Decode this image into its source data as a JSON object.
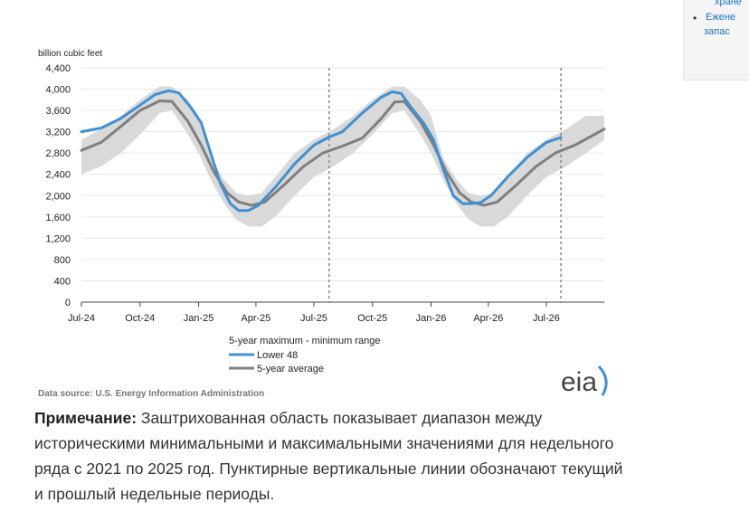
{
  "side_panel": {
    "line1": "хране",
    "line2": "Ежене",
    "line3": "запас"
  },
  "chart_data": {
    "type": "line",
    "ylabel": "billion cubic feet",
    "ylim": [
      0,
      4400
    ],
    "yticks": [
      0,
      400,
      800,
      1200,
      1600,
      2000,
      2400,
      2800,
      3200,
      3600,
      4000,
      4400
    ],
    "yticklabels": [
      "0",
      "400",
      "800",
      "1,200",
      "1,600",
      "2,000",
      "2,400",
      "2,800",
      "3,200",
      "3,600",
      "4,000",
      "4,400"
    ],
    "xlim": [
      "2024-07-01",
      "2026-09-30"
    ],
    "xticks": [
      "2024-07-01",
      "2024-10-01",
      "2025-01-01",
      "2025-04-01",
      "2025-07-01",
      "2025-10-01",
      "2026-01-01",
      "2026-04-01",
      "2026-07-01"
    ],
    "xticklabels": [
      "Jul-24",
      "Oct-24",
      "Jan-25",
      "Apr-25",
      "Jul-25",
      "Oct-25",
      "Jan-26",
      "Apr-26",
      "Jul-26"
    ],
    "grid": true,
    "current_week_lines": [
      "2025-07-25",
      "2026-07-24"
    ],
    "range": {
      "name": "5-year maximum - minimum range",
      "color": "#d9d9d9",
      "x": [
        "2024-07-01",
        "2024-08-01",
        "2024-09-01",
        "2024-10-01",
        "2024-11-01",
        "2024-11-20",
        "2024-12-15",
        "2025-01-01",
        "2025-01-20",
        "2025-02-10",
        "2025-03-01",
        "2025-03-20",
        "2025-04-10",
        "2025-05-01",
        "2025-06-01",
        "2025-07-01",
        "2025-08-01",
        "2025-09-01",
        "2025-10-01",
        "2025-11-01",
        "2025-11-20",
        "2025-12-15",
        "2026-01-01",
        "2026-01-20",
        "2026-02-10",
        "2026-03-01",
        "2026-03-20",
        "2026-04-10",
        "2026-05-01",
        "2026-06-01",
        "2026-07-01",
        "2026-08-01",
        "2026-09-01",
        "2026-09-30"
      ],
      "lower": [
        2400,
        2550,
        2800,
        3150,
        3550,
        3600,
        3150,
        2800,
        2300,
        1850,
        1550,
        1420,
        1420,
        1600,
        2000,
        2350,
        2550,
        2800,
        3150,
        3550,
        3600,
        3150,
        2800,
        2300,
        1850,
        1550,
        1420,
        1420,
        1600,
        2000,
        2350,
        2550,
        2800,
        3050
      ],
      "upper": [
        3050,
        3250,
        3500,
        3800,
        4050,
        4050,
        3800,
        3500,
        2700,
        2300,
        2050,
        2000,
        2050,
        2350,
        2800,
        3050,
        3250,
        3500,
        3800,
        4050,
        4050,
        3800,
        3500,
        2700,
        2300,
        2050,
        2000,
        2050,
        2350,
        2800,
        3050,
        3250,
        3500,
        3500
      ]
    },
    "series": [
      {
        "name": "Lower 48",
        "color": "#3f91d3",
        "x": [
          "2024-07-01",
          "2024-08-01",
          "2024-09-01",
          "2024-10-01",
          "2024-10-25",
          "2024-11-15",
          "2024-12-01",
          "2024-12-20",
          "2025-01-05",
          "2025-01-20",
          "2025-02-05",
          "2025-02-20",
          "2025-03-05",
          "2025-03-20",
          "2025-04-05",
          "2025-05-01",
          "2025-06-01",
          "2025-07-01",
          "2025-07-25",
          "2025-08-15",
          "2025-09-15",
          "2025-10-15",
          "2025-11-01",
          "2025-11-15",
          "2025-12-01",
          "2025-12-20",
          "2026-01-05",
          "2026-01-20",
          "2026-02-05",
          "2026-02-20",
          "2026-03-05",
          "2026-03-20",
          "2026-04-05",
          "2026-05-01",
          "2026-06-01",
          "2026-07-01",
          "2026-07-24"
        ],
        "values": [
          3200,
          3270,
          3450,
          3700,
          3900,
          3970,
          3930,
          3650,
          3370,
          2800,
          2200,
          1850,
          1720,
          1720,
          1820,
          2150,
          2600,
          2950,
          3100,
          3200,
          3550,
          3850,
          3950,
          3920,
          3650,
          3370,
          3050,
          2500,
          2000,
          1850,
          1850,
          1870,
          2000,
          2350,
          2720,
          3000,
          3090
        ]
      },
      {
        "name": "5-year average",
        "color": "#7f7f7f",
        "x": [
          "2024-07-01",
          "2024-08-01",
          "2024-09-01",
          "2024-10-01",
          "2024-11-01",
          "2024-11-20",
          "2024-12-15",
          "2025-01-05",
          "2025-01-25",
          "2025-02-15",
          "2025-03-05",
          "2025-03-25",
          "2025-04-15",
          "2025-05-15",
          "2025-06-15",
          "2025-07-15",
          "2025-08-15",
          "2025-09-15",
          "2025-10-15",
          "2025-11-05",
          "2025-11-20",
          "2025-12-15",
          "2026-01-05",
          "2026-01-25",
          "2026-02-15",
          "2026-03-05",
          "2026-03-25",
          "2026-04-15",
          "2026-05-15",
          "2026-06-15",
          "2026-07-15",
          "2026-08-15",
          "2026-09-30"
        ],
        "values": [
          2850,
          3000,
          3300,
          3600,
          3780,
          3770,
          3400,
          2950,
          2450,
          2050,
          1880,
          1820,
          1880,
          2200,
          2550,
          2800,
          2930,
          3080,
          3450,
          3760,
          3770,
          3400,
          2950,
          2450,
          2050,
          1880,
          1820,
          1880,
          2200,
          2550,
          2800,
          2950,
          3250
        ]
      }
    ],
    "legend": {
      "range_label": "5-year maximum - minimum range",
      "items": [
        "Lower 48",
        "5-year average"
      ],
      "placement": "bottom-center"
    },
    "source": "Data source: U.S. Energy Information Administration",
    "logo_text": "eia"
  },
  "note": {
    "bold": "Примечание:",
    "text": " Заштрихованная область показывает диапазон между историческими минимальными и максимальными значениями для недельного ряда с 2021 по 2025 год. Пунктирные вертикальные линии обозначают текущий и прошлый недельные периоды."
  }
}
